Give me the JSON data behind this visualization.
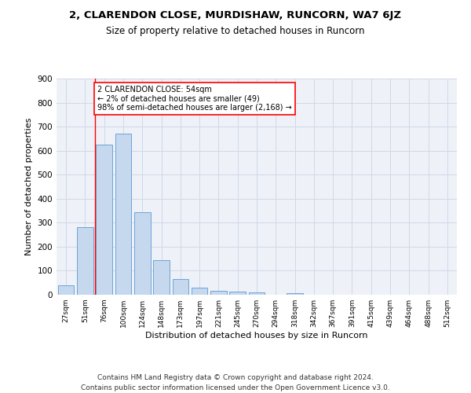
{
  "title1": "2, CLARENDON CLOSE, MURDISHAW, RUNCORN, WA7 6JZ",
  "title2": "Size of property relative to detached houses in Runcorn",
  "xlabel": "Distribution of detached houses by size in Runcorn",
  "ylabel": "Number of detached properties",
  "categories": [
    "27sqm",
    "51sqm",
    "76sqm",
    "100sqm",
    "124sqm",
    "148sqm",
    "173sqm",
    "197sqm",
    "221sqm",
    "245sqm",
    "270sqm",
    "294sqm",
    "318sqm",
    "342sqm",
    "367sqm",
    "391sqm",
    "415sqm",
    "439sqm",
    "464sqm",
    "488sqm",
    "512sqm"
  ],
  "values": [
    40,
    280,
    625,
    670,
    345,
    145,
    65,
    28,
    15,
    12,
    10,
    0,
    8,
    0,
    0,
    0,
    0,
    0,
    0,
    0,
    0
  ],
  "bar_color": "#c5d8ed",
  "bar_edge_color": "#5b9bd5",
  "annotation_box_text": "2 CLARENDON CLOSE: 54sqm\n← 2% of detached houses are smaller (49)\n98% of semi-detached houses are larger (2,168) →",
  "annotation_box_color": "white",
  "annotation_box_edge_color": "red",
  "vline_x": 1.5,
  "vline_color": "red",
  "ylim": [
    0,
    900
  ],
  "yticks": [
    0,
    100,
    200,
    300,
    400,
    500,
    600,
    700,
    800,
    900
  ],
  "grid_color": "#d0d8e8",
  "background_color": "#eef2f8",
  "footer": "Contains HM Land Registry data © Crown copyright and database right 2024.\nContains public sector information licensed under the Open Government Licence v3.0.",
  "title1_fontsize": 9.5,
  "title2_fontsize": 8.5,
  "xlabel_fontsize": 8,
  "ylabel_fontsize": 8,
  "footer_fontsize": 6.5,
  "annotation_fontsize": 7
}
